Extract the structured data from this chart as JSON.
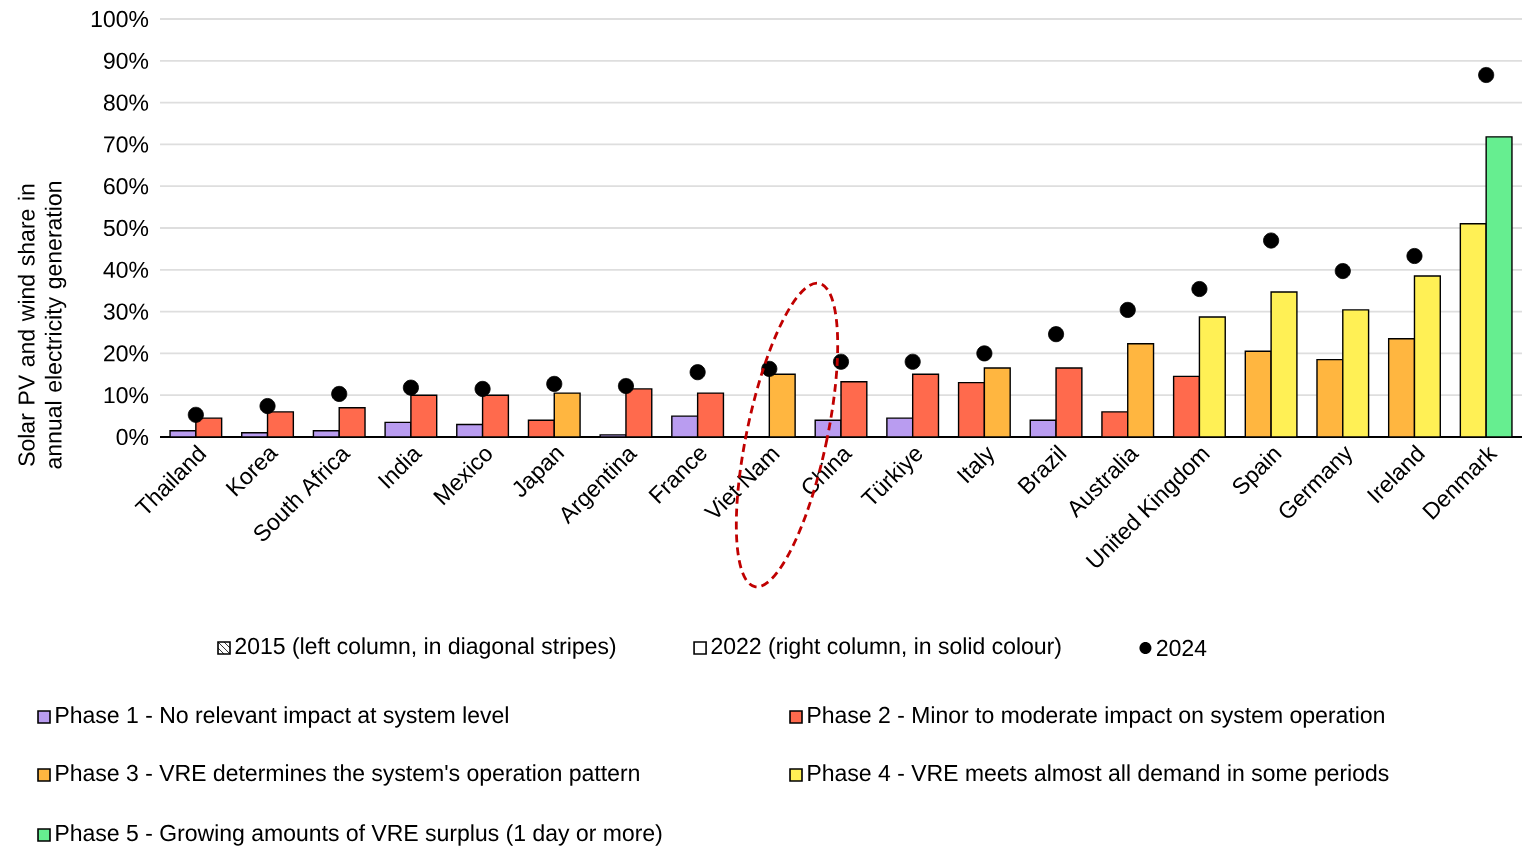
{
  "chart_data": {
    "type": "bar",
    "ylabel": "Solar PV and wind share in annual electricity generation",
    "categories": [
      "Thailand",
      "Korea",
      "South Africa",
      "India",
      "Mexico",
      "Japan",
      "Argentina",
      "France",
      "Viet Nam",
      "China",
      "Türkiye",
      "Italy",
      "Brazil",
      "Australia",
      "United Kingdom",
      "Spain",
      "Germany",
      "Ireland",
      "Denmark"
    ],
    "ylim": [
      0,
      100
    ],
    "yticks": [
      {
        "value": 0,
        "label": "0%"
      },
      {
        "value": 10,
        "label": "10%"
      },
      {
        "value": 20,
        "label": "20%"
      },
      {
        "value": 30,
        "label": "30%"
      },
      {
        "value": 40,
        "label": "40%"
      },
      {
        "value": 50,
        "label": "50%"
      },
      {
        "value": 60,
        "label": "60%"
      },
      {
        "value": 70,
        "label": "70%"
      },
      {
        "value": 80,
        "label": "80%"
      },
      {
        "value": 90,
        "label": "90%"
      },
      {
        "value": 100,
        "label": "100%"
      }
    ],
    "grid": "y",
    "legend": "bottom",
    "series": [
      {
        "name": "2015 (left column, in diagonal stripes)",
        "type": "bar",
        "values": [
          1.5,
          1,
          1.5,
          3.5,
          3,
          4,
          0.5,
          5,
          null,
          4,
          4.5,
          13,
          4,
          6,
          14.5,
          20.5,
          18.5,
          23.5,
          51
        ],
        "colors": [
          "#b99cf0",
          "#b99cf0",
          "#b99cf0",
          "#b99cf0",
          "#b99cf0",
          "#ff6a4d",
          "#b99cf0",
          "#b99cf0",
          null,
          "#b99cf0",
          "#b99cf0",
          "#ff6a4d",
          "#b99cf0",
          "#ff6a4d",
          "#ff6a4d",
          "#ffb640",
          "#ffb640",
          "#ffb640",
          "#fff055"
        ]
      },
      {
        "name": "2022 (right column, in solid colour)",
        "type": "bar",
        "values": [
          4.5,
          6,
          7,
          10,
          10,
          10.5,
          11.5,
          10.5,
          15,
          13.2,
          15,
          16.5,
          16.5,
          22.3,
          28.7,
          34.7,
          30.4,
          38.5,
          71.8
        ],
        "colors": [
          "#ff6a4d",
          "#ff6a4d",
          "#ff6a4d",
          "#ff6a4d",
          "#ff6a4d",
          "#ffb640",
          "#ff6a4d",
          "#ff6a4d",
          "#ffb640",
          "#ff6a4d",
          "#ff6a4d",
          "#ffb640",
          "#ff6a4d",
          "#ffb640",
          "#fff055",
          "#fff055",
          "#fff055",
          "#fff055",
          "#66ee90"
        ]
      },
      {
        "name": "2024",
        "type": "scatter",
        "marker": "circle",
        "color": "#000000",
        "values": [
          5.3,
          7.4,
          10.3,
          11.8,
          11.5,
          12.7,
          12.2,
          15.5,
          16.3,
          18,
          18,
          20,
          24.6,
          30.4,
          35.4,
          47,
          39.7,
          43.3,
          86.6
        ]
      },
      {
        "name": "Phase 1 - No relevant impact at system level",
        "type": "bar",
        "color": "#b99cf0",
        "values": [
          null,
          null,
          null,
          null,
          null,
          null,
          null,
          null,
          null,
          null,
          null,
          null,
          null,
          null,
          null,
          null,
          null,
          null,
          null
        ]
      },
      {
        "name": "Phase 2 - Minor to moderate impact on system operation",
        "type": "bar",
        "color": "#ff6a4d",
        "values": [
          null,
          null,
          null,
          null,
          null,
          null,
          null,
          null,
          null,
          null,
          null,
          null,
          null,
          null,
          null,
          null,
          null,
          null,
          null
        ]
      },
      {
        "name": "Phase 3 - VRE determines the system's operation pattern",
        "type": "bar",
        "color": "#ffb640",
        "values": [
          null,
          null,
          null,
          null,
          null,
          null,
          null,
          null,
          null,
          null,
          null,
          null,
          null,
          null,
          null,
          null,
          null,
          null,
          null
        ]
      },
      {
        "name": "Phase 4 - VRE meets almost all demand in some periods",
        "type": "bar",
        "color": "#fff055",
        "values": [
          null,
          null,
          null,
          null,
          null,
          null,
          null,
          null,
          null,
          null,
          null,
          null,
          null,
          null,
          null,
          null,
          null,
          null,
          null
        ]
      },
      {
        "name": "Phase 5 - Growing amounts of VRE surplus (1 day or more)",
        "type": "bar",
        "color": "#66ee90",
        "values": [
          null,
          null,
          null,
          null,
          null,
          null,
          null,
          null,
          null,
          null,
          null,
          null,
          null,
          null,
          null,
          null,
          null,
          null,
          null
        ]
      }
    ]
  }
}
